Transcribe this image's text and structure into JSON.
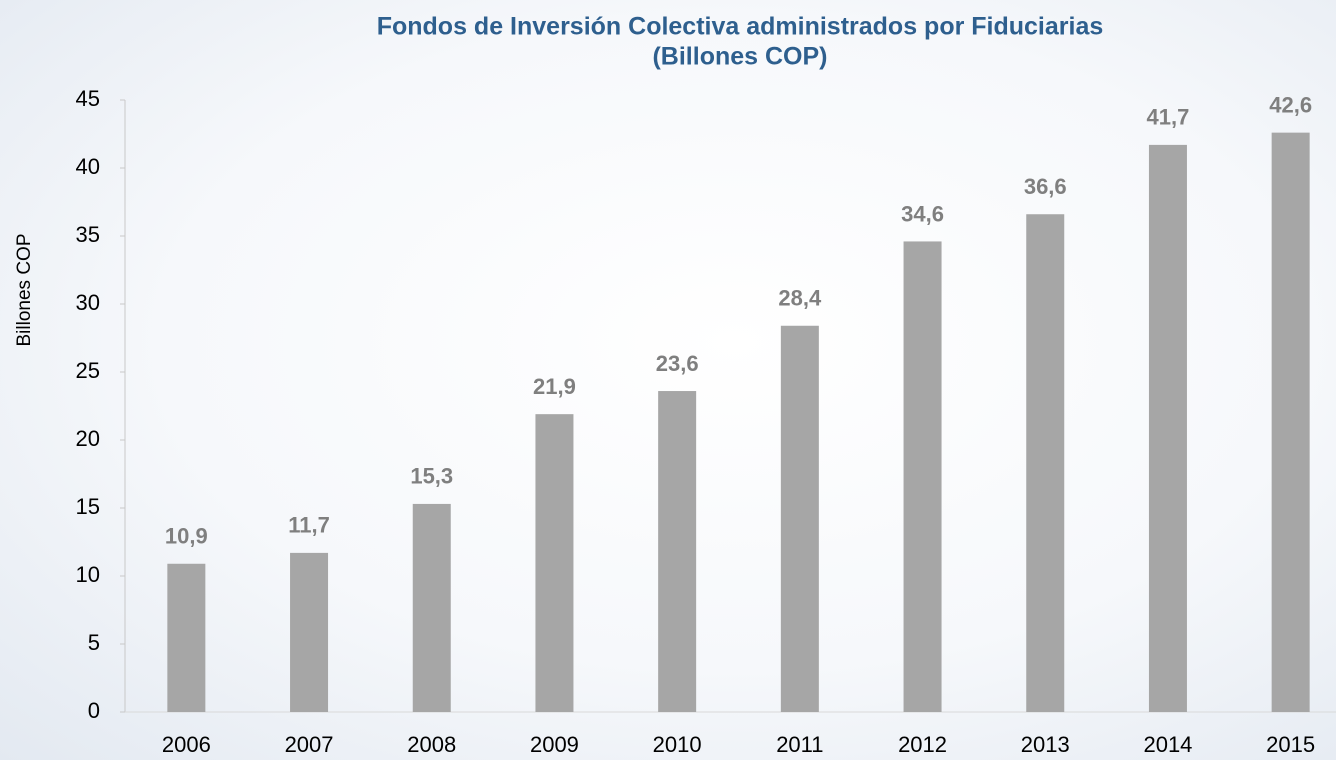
{
  "chart_data": {
    "type": "bar",
    "title": "Fondos de Inversión Colectiva administrados por Fiduciarias",
    "subtitle": "(Billones COP)",
    "y_label": "Billones COP",
    "categories": [
      "2006",
      "2007",
      "2008",
      "2009",
      "2010",
      "2011",
      "2012",
      "2013",
      "2014",
      "2015"
    ],
    "values": [
      10.9,
      11.7,
      15.3,
      21.9,
      23.6,
      28.4,
      34.6,
      36.6,
      41.7,
      42.6
    ],
    "value_labels": [
      "10,9",
      "11,7",
      "15,3",
      "21,9",
      "23,6",
      "28,4",
      "34,6",
      "36,6",
      "41,7",
      "42,6"
    ],
    "color": "#a6a6a6",
    "ylim": [
      0,
      45
    ],
    "yticks": [
      0,
      5,
      10,
      15,
      20,
      25,
      30,
      35,
      40,
      45
    ],
    "grid": false
  }
}
